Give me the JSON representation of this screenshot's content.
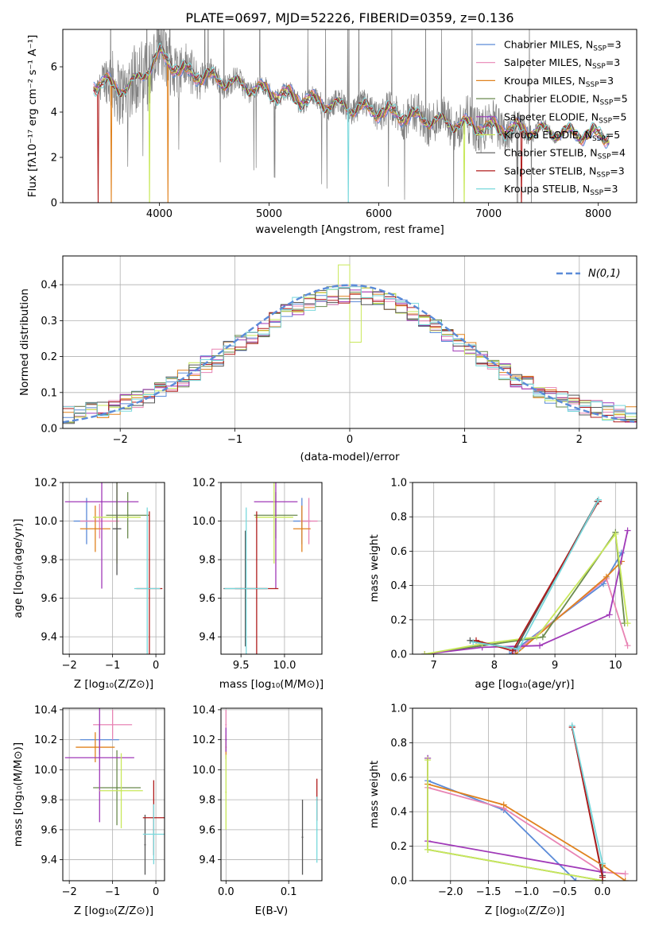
{
  "colors": {
    "chabrier_miles": "#5b8bd8",
    "salpeter_miles": "#e884b4",
    "kroupa_miles": "#e0821e",
    "chabrier_elodie": "#6a8a4e",
    "salpeter_elodie": "#a03ab8",
    "kroupa_elodie": "#c8e85a",
    "chabrier_stelib": "#555555",
    "salpeter_stelib": "#b01c1c",
    "kroupa_stelib": "#78d8dc",
    "data": "#808080",
    "normal": "#5b8bd8",
    "grid": "#b0b0b0"
  },
  "chart_data": [
    {
      "id": "spectrum",
      "type": "line",
      "title": "PLATE=0697, MJD=52226, FIBERID=0359, z=0.136",
      "xlabel": "wavelength [Angstrom, rest frame]",
      "ylabel": "Flux [fλ10⁻¹⁷ erg cm⁻² s⁻¹ A⁻¹]",
      "xlim": [
        3120,
        8350
      ],
      "ylim": [
        0,
        7.65
      ],
      "xticks": [
        "4000",
        "5000",
        "6000",
        "7000",
        "8000"
      ],
      "yticks": [
        "0",
        "2",
        "4",
        "6"
      ],
      "grid": false,
      "legend_position": "top-right",
      "legend": [
        {
          "label": "Chabrier MILES, N",
          "sub": "SSP",
          "tail": "=3",
          "color_key": "chabrier_miles"
        },
        {
          "label": "Salpeter MILES, N",
          "sub": "SSP",
          "tail": "=3",
          "color_key": "salpeter_miles"
        },
        {
          "label": "Kroupa MILES, N",
          "sub": "SSP",
          "tail": "=3",
          "color_key": "kroupa_miles"
        },
        {
          "label": "Chabrier ELODIE, N",
          "sub": "SSP",
          "tail": "=5",
          "color_key": "chabrier_elodie"
        },
        {
          "label": "Salpeter ELODIE, N",
          "sub": "SSP",
          "tail": "=5",
          "color_key": "salpeter_elodie"
        },
        {
          "label": "Kroupa ELODIE, N",
          "sub": "SSP",
          "tail": "=5",
          "color_key": "kroupa_elodie"
        },
        {
          "label": "Chabrier STELIB, N",
          "sub": "SSP",
          "tail": "=4",
          "color_key": "chabrier_stelib"
        },
        {
          "label": "Salpeter STELIB, N",
          "sub": "SSP",
          "tail": "=3",
          "color_key": "salpeter_stelib"
        },
        {
          "label": "Kroupa STELIB, N",
          "sub": "SSP",
          "tail": "=3",
          "color_key": "kroupa_stelib"
        }
      ],
      "continuum": [
        [
          3400,
          5.2
        ],
        [
          3500,
          5.4
        ],
        [
          3600,
          5.05
        ],
        [
          3700,
          5.1
        ],
        [
          3800,
          5.4
        ],
        [
          3900,
          5.9
        ],
        [
          4000,
          6.55
        ],
        [
          4100,
          6.2
        ],
        [
          4200,
          5.8
        ],
        [
          4400,
          5.6
        ],
        [
          4700,
          5.25
        ],
        [
          5000,
          4.9
        ],
        [
          5300,
          4.6
        ],
        [
          5600,
          4.3
        ],
        [
          6000,
          4.05
        ],
        [
          6300,
          3.8
        ],
        [
          6600,
          3.55
        ],
        [
          7000,
          3.35
        ],
        [
          7400,
          3.2
        ],
        [
          7800,
          3.05
        ],
        [
          8100,
          2.95
        ]
      ],
      "noise": [
        [
          3400,
          0.1
        ],
        [
          3550,
          1.4
        ],
        [
          3800,
          1.7
        ],
        [
          4100,
          1.4
        ],
        [
          4500,
          0.6
        ],
        [
          4900,
          0.45
        ],
        [
          5500,
          0.5
        ],
        [
          6000,
          0.7
        ],
        [
          6500,
          1.0
        ],
        [
          7000,
          1.1
        ],
        [
          7500,
          0.3
        ],
        [
          8100,
          0.2
        ]
      ],
      "model_dropouts": [
        {
          "series": "salpeter_stelib",
          "x": 3440
        },
        {
          "series": "kroupa_miles",
          "x": 3560
        },
        {
          "series": "kroupa_elodie",
          "x": 3910
        },
        {
          "series": "kroupa_miles",
          "x": 4080
        },
        {
          "series": "kroupa_stelib",
          "x": 5720
        },
        {
          "series": "kroupa_elodie",
          "x": 6780
        },
        {
          "series": "salpeter_stelib",
          "x": 7300
        }
      ]
    },
    {
      "id": "residuals",
      "type": "line",
      "xlabel": "(data-model)/error",
      "ylabel": "Normed distribution",
      "xlim": [
        -2.5,
        2.5
      ],
      "ylim": [
        0,
        0.48
      ],
      "xticks": [
        "−2",
        "−1",
        "0",
        "1",
        "2"
      ],
      "yticks": [
        "0.0",
        "0.1",
        "0.2",
        "0.3",
        "0.4"
      ],
      "grid": true,
      "legend_position": "top-right",
      "normal_label": "N(0,1)",
      "bin_width": 0.1
    },
    {
      "id": "age-vs-z",
      "type": "scatter",
      "xlabel": "Z [log₁₀(Z/Z⊙)]",
      "ylabel": "age  [log₁₀(age/yr)]",
      "xlim": [
        -2.15,
        0.2
      ],
      "ylim": [
        9.31,
        10.2
      ],
      "xticks": [
        "−2",
        "−1",
        "0"
      ],
      "yticks": [
        "9.4",
        "9.6",
        "9.8",
        "10.0",
        "10.2"
      ],
      "grid": true,
      "points": [
        {
          "series": "chabrier_miles",
          "x": -1.6,
          "y": 10.0,
          "xerr": 0.3,
          "yerr": 0.12
        },
        {
          "series": "salpeter_miles",
          "x": -1.3,
          "y": 10.0,
          "xerr": 0.45,
          "yerr": 0.09
        },
        {
          "series": "kroupa_miles",
          "x": -1.4,
          "y": 9.96,
          "xerr": 0.35,
          "yerr": 0.12
        },
        {
          "series": "chabrier_elodie",
          "x": -0.65,
          "y": 10.03,
          "xerr": 0.5,
          "yerr": 0.12
        },
        {
          "series": "salpeter_elodie",
          "x": -1.25,
          "y": 10.1,
          "xerr": 0.85,
          "yerr": 0.45
        },
        {
          "series": "kroupa_elodie",
          "x": -0.9,
          "y": 10.02,
          "xerr": 0.55,
          "yerr": 0.24
        },
        {
          "series": "chabrier_stelib",
          "x": -0.9,
          "y": 9.96,
          "xerr": 0.1,
          "yerr": 0.24
        },
        {
          "series": "salpeter_stelib",
          "x": -0.15,
          "y": 9.65,
          "xerr": 0.3,
          "yerr": 0.4
        },
        {
          "series": "kroupa_stelib",
          "x": -0.2,
          "y": 9.65,
          "xerr": 0.3,
          "yerr": 0.42
        }
      ]
    },
    {
      "id": "age-vs-mass",
      "type": "scatter",
      "xlabel": "mass [log₁₀(M/M⊙)]",
      "xlim": [
        9.27,
        10.43
      ],
      "ylim": [
        9.31,
        10.2
      ],
      "xticks": [
        "9.5",
        "10.0"
      ],
      "yticks": [
        "9.4",
        "9.6",
        "9.8",
        "10.0",
        "10.2"
      ],
      "grid": true,
      "points": [
        {
          "series": "chabrier_miles",
          "x": 10.2,
          "y": 10.0,
          "xerr": 0.1,
          "yerr": 0.12
        },
        {
          "series": "salpeter_miles",
          "x": 10.28,
          "y": 10.0,
          "xerr": 0.1,
          "yerr": 0.12
        },
        {
          "series": "kroupa_miles",
          "x": 10.2,
          "y": 9.96,
          "xerr": 0.1,
          "yerr": 0.12
        },
        {
          "series": "chabrier_elodie",
          "x": 9.9,
          "y": 10.03,
          "xerr": 0.25,
          "yerr": 0.12
        },
        {
          "series": "salpeter_elodie",
          "x": 9.9,
          "y": 10.1,
          "xerr": 0.25,
          "yerr": 0.45
        },
        {
          "series": "kroupa_elodie",
          "x": 9.88,
          "y": 10.02,
          "xerr": 0.22,
          "yerr": 0.24
        },
        {
          "series": "chabrier_stelib",
          "x": 9.55,
          "y": 9.65,
          "xerr": 0.25,
          "yerr": 0.3
        },
        {
          "series": "salpeter_stelib",
          "x": 9.68,
          "y": 9.65,
          "xerr": 0.25,
          "yerr": 0.4
        },
        {
          "series": "kroupa_stelib",
          "x": 9.56,
          "y": 9.65,
          "xerr": 0.25,
          "yerr": 0.42
        }
      ]
    },
    {
      "id": "weight-vs-age",
      "type": "line",
      "xlabel": "age  [log₁₀(age/yr)]",
      "ylabel": "mass weight",
      "xlim": [
        6.65,
        10.35
      ],
      "ylim": [
        0,
        1.0
      ],
      "xticks": [
        "7",
        "8",
        "9",
        "10"
      ],
      "yticks": [
        "0.0",
        "0.2",
        "0.4",
        "0.6",
        "0.8",
        "1.0"
      ],
      "grid": true,
      "series": [
        {
          "key": "chabrier_miles",
          "points": [
            [
              8.25,
              0.0
            ],
            [
              9.8,
              0.41
            ],
            [
              10.1,
              0.59
            ]
          ]
        },
        {
          "key": "salpeter_miles",
          "points": [
            [
              8.3,
              0.0
            ],
            [
              9.85,
              0.44
            ],
            [
              10.2,
              0.05
            ]
          ]
        },
        {
          "key": "kroupa_miles",
          "points": [
            [
              8.35,
              0.0
            ],
            [
              9.85,
              0.45
            ],
            [
              10.1,
              0.54
            ]
          ]
        },
        {
          "key": "chabrier_elodie",
          "points": [
            [
              6.85,
              0.0
            ],
            [
              7.8,
              0.05
            ],
            [
              8.8,
              0.1
            ],
            [
              10.0,
              0.71
            ],
            [
              10.15,
              0.18
            ]
          ]
        },
        {
          "key": "salpeter_elodie",
          "points": [
            [
              6.85,
              0.0
            ],
            [
              7.8,
              0.04
            ],
            [
              8.75,
              0.05
            ],
            [
              9.9,
              0.23
            ],
            [
              10.2,
              0.72
            ]
          ]
        },
        {
          "key": "kroupa_elodie",
          "points": [
            [
              6.85,
              0.0
            ],
            [
              7.8,
              0.06
            ],
            [
              8.7,
              0.1
            ],
            [
              10.0,
              0.7
            ],
            [
              10.2,
              0.18
            ]
          ]
        },
        {
          "key": "chabrier_stelib",
          "points": [
            [
              7.6,
              0.08
            ],
            [
              8.35,
              0.03
            ],
            [
              9.7,
              0.89
            ]
          ]
        },
        {
          "key": "salpeter_stelib",
          "points": [
            [
              7.7,
              0.08
            ],
            [
              8.3,
              0.02
            ],
            [
              9.72,
              0.89
            ]
          ]
        },
        {
          "key": "kroupa_stelib",
          "points": [
            [
              7.65,
              0.07
            ],
            [
              8.4,
              0.03
            ],
            [
              9.72,
              0.9
            ]
          ]
        }
      ]
    },
    {
      "id": "mass-vs-z",
      "type": "scatter",
      "xlabel": "Z [log₁₀(Z/Z⊙)]",
      "ylabel": "mass [log₁₀(M/M⊙)]",
      "xlim": [
        -2.15,
        0.2
      ],
      "ylim": [
        9.26,
        10.41
      ],
      "xticks": [
        "−2",
        "−1",
        "0"
      ],
      "yticks": [
        "9.4",
        "9.6",
        "9.8",
        "10.0",
        "10.2",
        "10.4"
      ],
      "grid": true,
      "points": [
        {
          "series": "chabrier_miles",
          "x": -1.3,
          "y": 10.2,
          "xerr": 0.45,
          "yerr": 0.1
        },
        {
          "series": "salpeter_miles",
          "x": -1.0,
          "y": 10.3,
          "xerr": 0.45,
          "yerr": 0.1
        },
        {
          "series": "kroupa_miles",
          "x": -1.4,
          "y": 10.15,
          "xerr": 0.45,
          "yerr": 0.1
        },
        {
          "series": "chabrier_elodie",
          "x": -0.9,
          "y": 9.88,
          "xerr": 0.55,
          "yerr": 0.25
        },
        {
          "series": "salpeter_elodie",
          "x": -1.3,
          "y": 10.08,
          "xerr": 0.8,
          "yerr": 0.43
        },
        {
          "series": "kroupa_elodie",
          "x": -0.8,
          "y": 9.86,
          "xerr": 0.5,
          "yerr": 0.25
        },
        {
          "series": "chabrier_stelib",
          "x": -0.25,
          "y": 9.5,
          "xerr": 0.0,
          "yerr": 0.2
        },
        {
          "series": "salpeter_stelib",
          "x": -0.05,
          "y": 9.68,
          "xerr": 0.25,
          "yerr": 0.25
        },
        {
          "series": "kroupa_stelib",
          "x": -0.05,
          "y": 9.57,
          "xerr": 0.25,
          "yerr": 0.2
        }
      ]
    },
    {
      "id": "mass-vs-ebv",
      "type": "scatter",
      "xlabel": "E(B-V)",
      "xlim": [
        -0.008,
        0.153
      ],
      "ylim": [
        9.26,
        10.41
      ],
      "xticks": [
        "0.0",
        "0.1"
      ],
      "yticks": [
        "9.4",
        "9.6",
        "9.8",
        "10.0",
        "10.2",
        "10.4"
      ],
      "grid": true,
      "points": [
        {
          "series": "chabrier_miles",
          "x": 0.0,
          "y": 10.2,
          "xerr": 0,
          "yerr": 0.08
        },
        {
          "series": "salpeter_miles",
          "x": 0.0,
          "y": 10.3,
          "xerr": 0,
          "yerr": 0.1
        },
        {
          "series": "kroupa_miles",
          "x": 0.0,
          "y": 10.15,
          "xerr": 0,
          "yerr": 0.08
        },
        {
          "series": "salpeter_elodie",
          "x": 0.0,
          "y": 10.2,
          "xerr": 0,
          "yerr": 0.08
        },
        {
          "series": "kroupa_elodie",
          "x": 0.0,
          "y": 9.85,
          "xerr": 0,
          "yerr": 0.25
        },
        {
          "series": "chabrier_stelib",
          "x": 0.122,
          "y": 9.55,
          "xerr": 0,
          "yerr": 0.25
        },
        {
          "series": "salpeter_stelib",
          "x": 0.145,
          "y": 9.8,
          "xerr": 0,
          "yerr": 0.14
        },
        {
          "series": "kroupa_stelib",
          "x": 0.145,
          "y": 9.6,
          "xerr": 0,
          "yerr": 0.22
        }
      ]
    },
    {
      "id": "weight-vs-z",
      "type": "line",
      "xlabel": "Z [log₁₀(Z/Z⊙)]",
      "ylabel": "mass weight",
      "xlim": [
        -2.5,
        0.45
      ],
      "ylim": [
        0,
        1.0
      ],
      "xticks": [
        "−2.0",
        "−1.5",
        "−1.0",
        "−0.5",
        "0.0"
      ],
      "yticks": [
        "0.0",
        "0.2",
        "0.4",
        "0.6",
        "0.8",
        "1.0"
      ],
      "grid": true,
      "series": [
        {
          "key": "chabrier_miles",
          "points": [
            [
              -2.3,
              0.58
            ],
            [
              -1.3,
              0.41
            ],
            [
              -0.35,
              0.0
            ]
          ]
        },
        {
          "key": "salpeter_miles",
          "points": [
            [
              -2.3,
              0.54
            ],
            [
              -1.3,
              0.42
            ],
            [
              0.0,
              0.05
            ],
            [
              0.3,
              0.04
            ]
          ]
        },
        {
          "key": "kroupa_miles",
          "points": [
            [
              -2.3,
              0.56
            ],
            [
              -1.3,
              0.44
            ],
            [
              0.0,
              0.09
            ],
            [
              0.3,
              0.0
            ]
          ]
        },
        {
          "key": "chabrier_elodie",
          "points": [
            [
              -2.3,
              0.71
            ],
            [
              -2.3,
              0.18
            ],
            [
              0.0,
              0.0
            ],
            [
              0.0,
              0.1
            ]
          ]
        },
        {
          "key": "salpeter_elodie",
          "points": [
            [
              -2.3,
              0.71
            ],
            [
              -2.3,
              0.23
            ],
            [
              0.0,
              0.05
            ],
            [
              0.0,
              0.0
            ]
          ]
        },
        {
          "key": "kroupa_elodie",
          "points": [
            [
              -2.3,
              0.7
            ],
            [
              -2.3,
              0.18
            ],
            [
              0.0,
              0.0
            ]
          ]
        },
        {
          "key": "chabrier_stelib",
          "points": [
            [
              -0.4,
              0.89
            ],
            [
              0.0,
              0.03
            ]
          ]
        },
        {
          "key": "salpeter_stelib",
          "points": [
            [
              -0.4,
              0.89
            ],
            [
              0.0,
              0.02
            ]
          ]
        },
        {
          "key": "kroupa_stelib",
          "points": [
            [
              -0.4,
              0.9
            ],
            [
              0.0,
              0.1
            ]
          ]
        }
      ]
    }
  ]
}
